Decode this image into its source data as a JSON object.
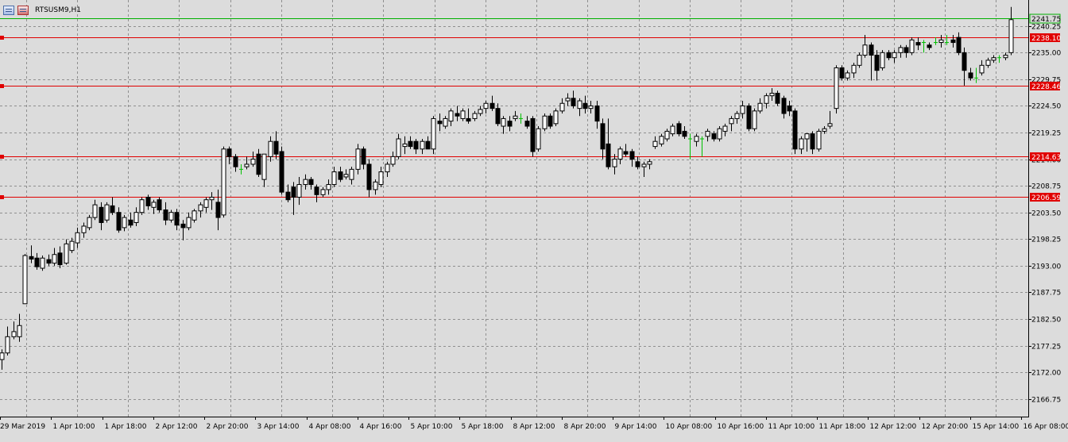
{
  "window": {
    "symbol_title": "RTSUSM9,H1",
    "icons": [
      "chart-window-icon",
      "chart-type-icon"
    ]
  },
  "colors": {
    "background": "#dcdcdc",
    "grid": "#8f8f8f",
    "bull_body": "#ffffff",
    "bear_body": "#000000",
    "candle_outline": "#000000",
    "doji": "#00c000",
    "level_line": "#e00000",
    "ask_line": "#00b000",
    "level_label_bg": "#e00000",
    "level_label_text": "#ffffff"
  },
  "chart_data": {
    "type": "candlestick",
    "title": "RTSUSM9,H1",
    "xlabel": "",
    "ylabel": "",
    "ylim": [
      2163.25,
      2244.75
    ],
    "grid": true,
    "y_ticks": [
      "2240.25",
      "2235.00",
      "2229.75",
      "2224.50",
      "2219.25",
      "2214.00",
      "2208.75",
      "2203.50",
      "2198.25",
      "2193.00",
      "2187.75",
      "2182.50",
      "2177.25",
      "2172.00",
      "2166.75"
    ],
    "x_ticks": [
      "29 Mar 2019",
      "1 Apr 10:00",
      "1 Apr 18:00",
      "2 Apr 12:00",
      "2 Apr 20:00",
      "3 Apr 14:00",
      "4 Apr 08:00",
      "4 Apr 16:00",
      "5 Apr 10:00",
      "5 Apr 18:00",
      "8 Apr 12:00",
      "8 Apr 20:00",
      "9 Apr 14:00",
      "10 Apr 08:00",
      "10 Apr 16:00",
      "11 Apr 10:00",
      "11 Apr 18:00",
      "12 Apr 12:00",
      "12 Apr 20:00",
      "15 Apr 14:00",
      "16 Apr 08:00"
    ],
    "levels": [
      {
        "label": "2241.75",
        "value": 2241.75,
        "kind": "ask"
      },
      {
        "label": "2238.10",
        "value": 2238.1,
        "kind": "level"
      },
      {
        "label": "2228.46",
        "value": 2228.46,
        "kind": "level"
      },
      {
        "label": "2214.63",
        "value": 2214.63,
        "kind": "level"
      },
      {
        "label": "2206.59",
        "value": 2206.59,
        "kind": "level"
      }
    ],
    "candles": [
      {
        "o": 2174.5,
        "h": 2176.5,
        "l": 2172.5,
        "c": 2175.8
      },
      {
        "o": 2175.8,
        "h": 2181.0,
        "l": 2175.3,
        "c": 2179.0
      },
      {
        "o": 2179.0,
        "h": 2182.0,
        "l": 2178.5,
        "c": 2180.0
      },
      {
        "o": 2179.0,
        "h": 2183.5,
        "l": 2178.0,
        "c": 2181.2
      },
      {
        "o": 2185.5,
        "h": 2195.3,
        "l": 2185.5,
        "c": 2195.0
      },
      {
        "o": 2194.8,
        "h": 2197.0,
        "l": 2193.5,
        "c": 2194.3
      },
      {
        "o": 2194.5,
        "h": 2195.5,
        "l": 2192.2,
        "c": 2192.8
      },
      {
        "o": 2192.5,
        "h": 2195.0,
        "l": 2192.0,
        "c": 2194.5
      },
      {
        "o": 2194.2,
        "h": 2195.2,
        "l": 2193.0,
        "c": 2193.5
      },
      {
        "o": 2193.5,
        "h": 2196.5,
        "l": 2193.0,
        "c": 2195.2
      },
      {
        "o": 2195.5,
        "h": 2196.8,
        "l": 2192.5,
        "c": 2193.2
      },
      {
        "o": 2193.5,
        "h": 2198.2,
        "l": 2193.2,
        "c": 2197.3
      },
      {
        "o": 2196.0,
        "h": 2198.5,
        "l": 2195.5,
        "c": 2197.8
      },
      {
        "o": 2197.5,
        "h": 2200.5,
        "l": 2196.5,
        "c": 2199.5
      },
      {
        "o": 2199.5,
        "h": 2201.5,
        "l": 2198.5,
        "c": 2200.8
      },
      {
        "o": 2200.5,
        "h": 2203.0,
        "l": 2200.0,
        "c": 2202.5
      },
      {
        "o": 2202.5,
        "h": 2206.0,
        "l": 2202.0,
        "c": 2205.0
      },
      {
        "o": 2204.5,
        "h": 2205.5,
        "l": 2200.0,
        "c": 2201.5
      },
      {
        "o": 2202.0,
        "h": 2205.5,
        "l": 2201.5,
        "c": 2205.0
      },
      {
        "o": 2204.8,
        "h": 2206.5,
        "l": 2203.0,
        "c": 2203.5
      },
      {
        "o": 2203.5,
        "h": 2204.5,
        "l": 2199.5,
        "c": 2200.0
      },
      {
        "o": 2200.5,
        "h": 2203.0,
        "l": 2199.8,
        "c": 2202.5
      },
      {
        "o": 2202.0,
        "h": 2203.5,
        "l": 2200.5,
        "c": 2201.0
      },
      {
        "o": 2201.5,
        "h": 2204.5,
        "l": 2200.8,
        "c": 2203.5
      },
      {
        "o": 2203.5,
        "h": 2206.5,
        "l": 2203.0,
        "c": 2206.0
      },
      {
        "o": 2206.5,
        "h": 2207.0,
        "l": 2204.0,
        "c": 2204.8
      },
      {
        "o": 2204.5,
        "h": 2206.0,
        "l": 2203.2,
        "c": 2205.5
      },
      {
        "o": 2206.0,
        "h": 2206.5,
        "l": 2203.5,
        "c": 2204.0
      },
      {
        "o": 2204.0,
        "h": 2205.5,
        "l": 2201.0,
        "c": 2202.0
      },
      {
        "o": 2202.0,
        "h": 2204.0,
        "l": 2201.5,
        "c": 2203.5
      },
      {
        "o": 2203.5,
        "h": 2204.2,
        "l": 2200.0,
        "c": 2201.0
      },
      {
        "o": 2201.2,
        "h": 2202.0,
        "l": 2198.0,
        "c": 2200.5
      },
      {
        "o": 2200.5,
        "h": 2203.5,
        "l": 2200.0,
        "c": 2202.5
      },
      {
        "o": 2202.0,
        "h": 2204.2,
        "l": 2201.5,
        "c": 2203.8
      },
      {
        "o": 2203.8,
        "h": 2205.5,
        "l": 2202.5,
        "c": 2205.0
      },
      {
        "o": 2204.5,
        "h": 2206.5,
        "l": 2203.5,
        "c": 2206.0
      },
      {
        "o": 2206.0,
        "h": 2207.5,
        "l": 2204.0,
        "c": 2206.5
      },
      {
        "o": 2205.5,
        "h": 2208.0,
        "l": 2200.0,
        "c": 2202.5
      },
      {
        "o": 2203.0,
        "h": 2216.5,
        "l": 2202.5,
        "c": 2216.0
      },
      {
        "o": 2216.0,
        "h": 2216.5,
        "l": 2213.0,
        "c": 2214.5
      },
      {
        "o": 2214.5,
        "h": 2215.0,
        "l": 2211.5,
        "c": 2212.5
      },
      {
        "o": 2212.0,
        "h": 2213.0,
        "l": 2211.0,
        "c": 2212.0
      },
      {
        "o": 2212.5,
        "h": 2214.5,
        "l": 2212.0,
        "c": 2213.0
      },
      {
        "o": 2213.0,
        "h": 2215.5,
        "l": 2212.5,
        "c": 2214.0
      },
      {
        "o": 2215.0,
        "h": 2216.0,
        "l": 2210.5,
        "c": 2211.0
      },
      {
        "o": 2210.0,
        "h": 2215.0,
        "l": 2208.5,
        "c": 2215.0
      },
      {
        "o": 2214.5,
        "h": 2218.5,
        "l": 2213.5,
        "c": 2217.5
      },
      {
        "o": 2217.5,
        "h": 2219.5,
        "l": 2214.0,
        "c": 2215.0
      },
      {
        "o": 2215.5,
        "h": 2216.5,
        "l": 2207.0,
        "c": 2207.5
      },
      {
        "o": 2207.5,
        "h": 2209.0,
        "l": 2205.5,
        "c": 2206.0
      },
      {
        "o": 2208.5,
        "h": 2209.5,
        "l": 2203.0,
        "c": 2206.5
      },
      {
        "o": 2206.5,
        "h": 2210.5,
        "l": 2205.0,
        "c": 2209.0
      },
      {
        "o": 2209.0,
        "h": 2211.0,
        "l": 2208.0,
        "c": 2210.0
      },
      {
        "o": 2210.0,
        "h": 2210.5,
        "l": 2208.0,
        "c": 2209.0
      },
      {
        "o": 2208.5,
        "h": 2209.0,
        "l": 2205.5,
        "c": 2207.0
      },
      {
        "o": 2207.0,
        "h": 2208.5,
        "l": 2206.5,
        "c": 2208.0
      },
      {
        "o": 2208.0,
        "h": 2210.0,
        "l": 2207.0,
        "c": 2209.0
      },
      {
        "o": 2209.0,
        "h": 2212.5,
        "l": 2208.5,
        "c": 2211.5
      },
      {
        "o": 2211.5,
        "h": 2212.5,
        "l": 2209.5,
        "c": 2210.0
      },
      {
        "o": 2210.5,
        "h": 2212.0,
        "l": 2210.0,
        "c": 2211.0
      },
      {
        "o": 2210.0,
        "h": 2212.5,
        "l": 2209.0,
        "c": 2212.0
      },
      {
        "o": 2212.0,
        "h": 2217.0,
        "l": 2211.0,
        "c": 2216.0
      },
      {
        "o": 2216.0,
        "h": 2216.5,
        "l": 2212.0,
        "c": 2213.0
      },
      {
        "o": 2213.0,
        "h": 2214.0,
        "l": 2206.5,
        "c": 2208.0
      },
      {
        "o": 2208.0,
        "h": 2210.0,
        "l": 2207.0,
        "c": 2209.5
      },
      {
        "o": 2209.0,
        "h": 2212.5,
        "l": 2208.5,
        "c": 2211.5
      },
      {
        "o": 2211.5,
        "h": 2213.5,
        "l": 2210.5,
        "c": 2213.0
      },
      {
        "o": 2213.0,
        "h": 2215.5,
        "l": 2212.5,
        "c": 2214.5
      },
      {
        "o": 2214.5,
        "h": 2219.0,
        "l": 2214.0,
        "c": 2218.0
      },
      {
        "o": 2216.5,
        "h": 2218.5,
        "l": 2215.0,
        "c": 2217.0
      },
      {
        "o": 2217.5,
        "h": 2218.5,
        "l": 2216.0,
        "c": 2216.5
      },
      {
        "o": 2217.5,
        "h": 2218.0,
        "l": 2215.0,
        "c": 2216.0
      },
      {
        "o": 2216.0,
        "h": 2218.0,
        "l": 2215.0,
        "c": 2217.5
      },
      {
        "o": 2217.5,
        "h": 2218.5,
        "l": 2216.0,
        "c": 2216.0
      },
      {
        "o": 2216.0,
        "h": 2222.5,
        "l": 2215.0,
        "c": 2222.0
      },
      {
        "o": 2221.5,
        "h": 2223.0,
        "l": 2219.5,
        "c": 2221.0
      },
      {
        "o": 2220.5,
        "h": 2222.5,
        "l": 2220.0,
        "c": 2222.0
      },
      {
        "o": 2221.5,
        "h": 2224.0,
        "l": 2220.5,
        "c": 2223.5
      },
      {
        "o": 2223.0,
        "h": 2224.5,
        "l": 2221.5,
        "c": 2222.5
      },
      {
        "o": 2222.0,
        "h": 2224.0,
        "l": 2221.5,
        "c": 2223.5
      },
      {
        "o": 2222.0,
        "h": 2224.0,
        "l": 2221.0,
        "c": 2221.5
      },
      {
        "o": 2222.0,
        "h": 2223.5,
        "l": 2221.5,
        "c": 2223.0
      },
      {
        "o": 2223.0,
        "h": 2224.5,
        "l": 2222.5,
        "c": 2223.8
      },
      {
        "o": 2224.0,
        "h": 2225.5,
        "l": 2223.0,
        "c": 2225.0
      },
      {
        "o": 2225.0,
        "h": 2226.5,
        "l": 2223.5,
        "c": 2224.0
      },
      {
        "o": 2224.0,
        "h": 2225.0,
        "l": 2220.5,
        "c": 2221.0
      },
      {
        "o": 2220.5,
        "h": 2222.5,
        "l": 2219.0,
        "c": 2222.0
      },
      {
        "o": 2221.5,
        "h": 2222.5,
        "l": 2219.5,
        "c": 2220.5
      },
      {
        "o": 2222.0,
        "h": 2223.5,
        "l": 2221.5,
        "c": 2222.5
      },
      {
        "o": 2222.0,
        "h": 2223.0,
        "l": 2221.0,
        "c": 2222.0
      },
      {
        "o": 2221.5,
        "h": 2222.5,
        "l": 2220.0,
        "c": 2220.5
      },
      {
        "o": 2222.0,
        "h": 2222.5,
        "l": 2214.5,
        "c": 2215.5
      },
      {
        "o": 2216.0,
        "h": 2220.5,
        "l": 2215.5,
        "c": 2220.0
      },
      {
        "o": 2220.0,
        "h": 2223.0,
        "l": 2219.5,
        "c": 2222.5
      },
      {
        "o": 2222.5,
        "h": 2223.0,
        "l": 2220.0,
        "c": 2220.5
      },
      {
        "o": 2221.0,
        "h": 2224.0,
        "l": 2220.5,
        "c": 2223.5
      },
      {
        "o": 2223.5,
        "h": 2226.0,
        "l": 2223.0,
        "c": 2225.0
      },
      {
        "o": 2225.5,
        "h": 2227.0,
        "l": 2224.5,
        "c": 2226.0
      },
      {
        "o": 2226.0,
        "h": 2227.5,
        "l": 2224.0,
        "c": 2224.5
      },
      {
        "o": 2224.0,
        "h": 2226.0,
        "l": 2222.5,
        "c": 2225.5
      },
      {
        "o": 2225.0,
        "h": 2226.5,
        "l": 2223.0,
        "c": 2224.0
      },
      {
        "o": 2224.0,
        "h": 2225.5,
        "l": 2223.0,
        "c": 2224.5
      },
      {
        "o": 2224.5,
        "h": 2225.5,
        "l": 2220.0,
        "c": 2221.5
      },
      {
        "o": 2221.0,
        "h": 2222.0,
        "l": 2214.0,
        "c": 2216.0
      },
      {
        "o": 2217.0,
        "h": 2222.0,
        "l": 2212.0,
        "c": 2212.5
      },
      {
        "o": 2212.5,
        "h": 2215.0,
        "l": 2211.0,
        "c": 2214.0
      },
      {
        "o": 2214.0,
        "h": 2216.5,
        "l": 2213.0,
        "c": 2216.0
      },
      {
        "o": 2215.5,
        "h": 2217.0,
        "l": 2214.5,
        "c": 2215.0
      },
      {
        "o": 2215.5,
        "h": 2216.0,
        "l": 2212.5,
        "c": 2214.0
      },
      {
        "o": 2213.5,
        "h": 2214.5,
        "l": 2212.0,
        "c": 2212.5
      },
      {
        "o": 2212.5,
        "h": 2213.5,
        "l": 2210.5,
        "c": 2213.0
      },
      {
        "o": 2213.0,
        "h": 2214.0,
        "l": 2212.0,
        "c": 2213.5
      },
      {
        "o": 2216.5,
        "h": 2218.5,
        "l": 2216.0,
        "c": 2217.5
      },
      {
        "o": 2217.0,
        "h": 2219.0,
        "l": 2216.5,
        "c": 2218.5
      },
      {
        "o": 2218.0,
        "h": 2220.0,
        "l": 2217.5,
        "c": 2219.5
      },
      {
        "o": 2219.0,
        "h": 2221.0,
        "l": 2218.5,
        "c": 2220.5
      },
      {
        "o": 2221.0,
        "h": 2221.5,
        "l": 2218.5,
        "c": 2219.0
      },
      {
        "o": 2219.5,
        "h": 2220.5,
        "l": 2218.0,
        "c": 2218.5
      },
      {
        "o": 2218.0,
        "h": 2219.0,
        "l": 2214.0,
        "c": 2218.0
      },
      {
        "o": 2217.5,
        "h": 2219.0,
        "l": 2216.5,
        "c": 2218.5
      },
      {
        "o": 2218.0,
        "h": 2218.5,
        "l": 2214.5,
        "c": 2218.0
      },
      {
        "o": 2218.5,
        "h": 2220.0,
        "l": 2217.5,
        "c": 2219.5
      },
      {
        "o": 2219.0,
        "h": 2219.5,
        "l": 2217.5,
        "c": 2218.0
      },
      {
        "o": 2218.0,
        "h": 2220.5,
        "l": 2217.5,
        "c": 2220.0
      },
      {
        "o": 2219.5,
        "h": 2221.0,
        "l": 2218.5,
        "c": 2220.5
      },
      {
        "o": 2221.0,
        "h": 2222.5,
        "l": 2219.5,
        "c": 2222.0
      },
      {
        "o": 2222.0,
        "h": 2223.5,
        "l": 2221.0,
        "c": 2223.0
      },
      {
        "o": 2223.0,
        "h": 2225.5,
        "l": 2222.0,
        "c": 2224.5
      },
      {
        "o": 2224.5,
        "h": 2225.0,
        "l": 2219.5,
        "c": 2220.0
      },
      {
        "o": 2220.0,
        "h": 2224.0,
        "l": 2219.5,
        "c": 2223.5
      },
      {
        "o": 2223.5,
        "h": 2226.0,
        "l": 2223.0,
        "c": 2225.0
      },
      {
        "o": 2225.0,
        "h": 2227.0,
        "l": 2224.0,
        "c": 2226.5
      },
      {
        "o": 2226.5,
        "h": 2228.0,
        "l": 2225.5,
        "c": 2227.0
      },
      {
        "o": 2227.0,
        "h": 2227.5,
        "l": 2224.5,
        "c": 2225.0
      },
      {
        "o": 2226.0,
        "h": 2226.5,
        "l": 2222.0,
        "c": 2223.0
      },
      {
        "o": 2224.5,
        "h": 2225.5,
        "l": 2222.5,
        "c": 2223.5
      },
      {
        "o": 2223.5,
        "h": 2224.0,
        "l": 2215.0,
        "c": 2216.0
      },
      {
        "o": 2216.0,
        "h": 2218.5,
        "l": 2215.0,
        "c": 2218.0
      },
      {
        "o": 2218.0,
        "h": 2219.0,
        "l": 2215.5,
        "c": 2219.0
      },
      {
        "o": 2219.0,
        "h": 2219.5,
        "l": 2215.0,
        "c": 2216.0
      },
      {
        "o": 2216.0,
        "h": 2220.0,
        "l": 2215.5,
        "c": 2219.5
      },
      {
        "o": 2219.5,
        "h": 2220.5,
        "l": 2219.0,
        "c": 2220.0
      },
      {
        "o": 2220.5,
        "h": 2223.5,
        "l": 2220.0,
        "c": 2221.0
      },
      {
        "o": 2224.0,
        "h": 2232.5,
        "l": 2223.0,
        "c": 2232.0
      },
      {
        "o": 2232.0,
        "h": 2232.5,
        "l": 2229.5,
        "c": 2230.0
      },
      {
        "o": 2230.0,
        "h": 2231.5,
        "l": 2229.5,
        "c": 2231.0
      },
      {
        "o": 2231.0,
        "h": 2233.0,
        "l": 2230.0,
        "c": 2232.5
      },
      {
        "o": 2232.5,
        "h": 2235.0,
        "l": 2232.0,
        "c": 2234.5
      },
      {
        "o": 2234.5,
        "h": 2238.5,
        "l": 2234.0,
        "c": 2236.5
      },
      {
        "o": 2236.5,
        "h": 2237.0,
        "l": 2229.5,
        "c": 2234.5
      },
      {
        "o": 2234.5,
        "h": 2235.5,
        "l": 2229.5,
        "c": 2231.5
      },
      {
        "o": 2232.0,
        "h": 2235.5,
        "l": 2231.5,
        "c": 2235.0
      },
      {
        "o": 2235.0,
        "h": 2235.5,
        "l": 2233.5,
        "c": 2234.0
      },
      {
        "o": 2234.0,
        "h": 2235.5,
        "l": 2233.0,
        "c": 2235.0
      },
      {
        "o": 2235.0,
        "h": 2236.5,
        "l": 2234.0,
        "c": 2236.0
      },
      {
        "o": 2236.0,
        "h": 2236.5,
        "l": 2234.0,
        "c": 2235.0
      },
      {
        "o": 2235.0,
        "h": 2238.0,
        "l": 2234.5,
        "c": 2237.5
      },
      {
        "o": 2237.0,
        "h": 2238.0,
        "l": 2235.5,
        "c": 2236.5
      },
      {
        "o": 2237.0,
        "h": 2237.5,
        "l": 2235.0,
        "c": 2237.0
      },
      {
        "o": 2236.5,
        "h": 2237.0,
        "l": 2235.5,
        "c": 2236.0
      },
      {
        "o": 2237.0,
        "h": 2238.0,
        "l": 2236.5,
        "c": 2237.0
      },
      {
        "o": 2237.0,
        "h": 2238.5,
        "l": 2236.0,
        "c": 2237.5
      },
      {
        "o": 2237.0,
        "h": 2238.5,
        "l": 2236.5,
        "c": 2237.0
      },
      {
        "o": 2237.5,
        "h": 2238.5,
        "l": 2236.0,
        "c": 2237.0
      },
      {
        "o": 2238.0,
        "h": 2239.0,
        "l": 2234.5,
        "c": 2235.0
      },
      {
        "o": 2235.0,
        "h": 2236.0,
        "l": 2228.5,
        "c": 2231.5
      },
      {
        "o": 2231.0,
        "h": 2232.0,
        "l": 2229.5,
        "c": 2230.0
      },
      {
        "o": 2230.0,
        "h": 2232.0,
        "l": 2229.0,
        "c": 2230.0
      },
      {
        "o": 2231.0,
        "h": 2233.5,
        "l": 2230.5,
        "c": 2232.5
      },
      {
        "o": 2232.5,
        "h": 2234.0,
        "l": 2232.0,
        "c": 2233.5
      },
      {
        "o": 2233.5,
        "h": 2234.5,
        "l": 2233.0,
        "c": 2234.0
      },
      {
        "o": 2234.0,
        "h": 2234.5,
        "l": 2233.0,
        "c": 2234.0
      },
      {
        "o": 2234.0,
        "h": 2235.0,
        "l": 2233.5,
        "c": 2234.5
      },
      {
        "o": 2235.0,
        "h": 2244.0,
        "l": 2234.5,
        "c": 2241.5
      }
    ]
  }
}
